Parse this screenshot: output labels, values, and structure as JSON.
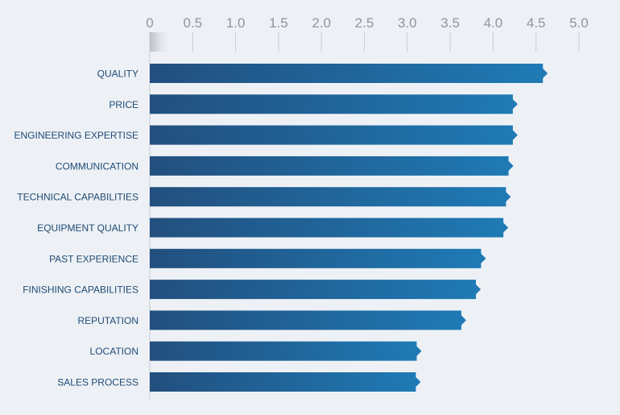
{
  "chart_data": {
    "type": "bar",
    "orientation": "horizontal",
    "categories": [
      "QUALITY",
      "PRICE",
      "ENGINEERING EXPERTISE",
      "COMMUNICATION",
      "TECHNICAL CAPABILITIES",
      "EQUIPMENT QUALITY",
      "PAST EXPERIENCE",
      "FINISHING CAPABILITIES",
      "REPUTATION",
      "LOCATION",
      "SALES PROCESS"
    ],
    "values": [
      4.58,
      4.23,
      4.23,
      4.18,
      4.15,
      4.12,
      3.86,
      3.8,
      3.63,
      3.11,
      3.1
    ],
    "xlim": [
      0,
      5.0
    ],
    "ticks": [
      "0",
      "0.5",
      "1.0",
      "1.5",
      "2.0",
      "2.5",
      "3.0",
      "3.5",
      "4.0",
      "4.5",
      "5.0"
    ],
    "tick_values": [
      0,
      0.5,
      1.0,
      1.5,
      2.0,
      2.5,
      3.0,
      3.5,
      4.0,
      4.5,
      5.0
    ],
    "title": "",
    "xlabel": "",
    "ylabel": "",
    "grid": true,
    "legend": "none",
    "colors": {
      "bar_start": "#224f7e",
      "bar_end": "#1f7ab5",
      "grid": "#c7ccd3",
      "tick_text": "#8e959d",
      "label_text": "#1f4a73",
      "background": "#edf1f6"
    }
  }
}
